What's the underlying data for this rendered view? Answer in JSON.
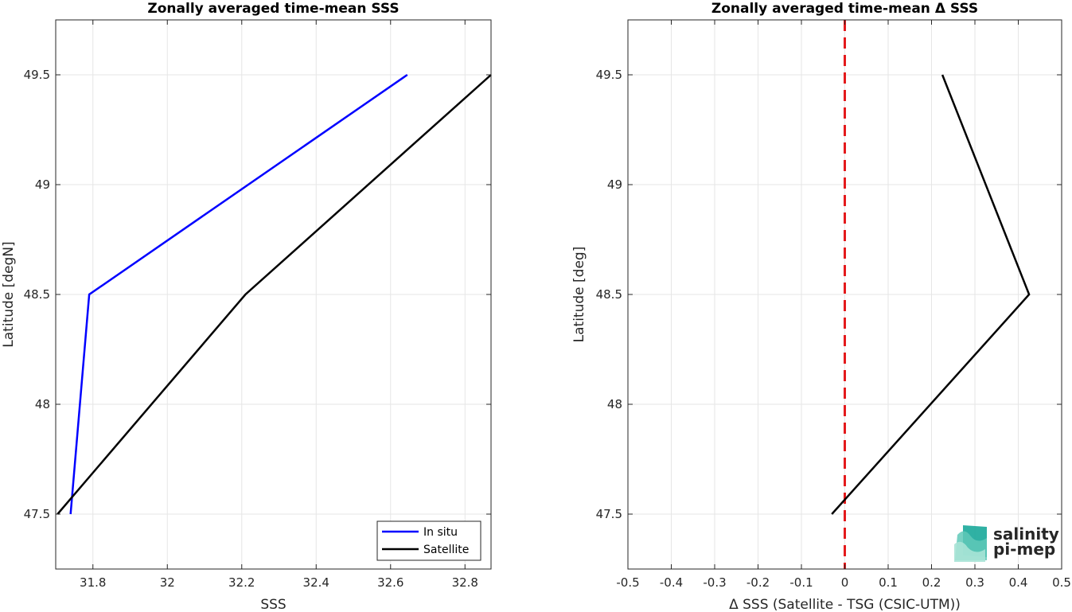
{
  "chart_data": [
    {
      "type": "line",
      "title": "Zonally averaged time-mean SSS",
      "xlabel": "SSS",
      "ylabel": "Latitude [degN]",
      "xlim": [
        31.7,
        32.87
      ],
      "ylim": [
        47.25,
        49.75
      ],
      "xticks": [
        31.8,
        32,
        32.2,
        32.4,
        32.6,
        32.8
      ],
      "xtick_labels": [
        "31.8",
        "32",
        "32.2",
        "32.4",
        "32.6",
        "32.8"
      ],
      "yticks": [
        47.5,
        48,
        48.5,
        49,
        49.5
      ],
      "ytick_labels": [
        "47.5",
        "48",
        "48.5",
        "49",
        "49.5"
      ],
      "grid": true,
      "legend_position": "bottom-right",
      "series": [
        {
          "name": "In situ",
          "color": "#0000ff",
          "x": [
            31.74,
            31.79,
            32.645
          ],
          "y": [
            47.5,
            48.5,
            49.5
          ]
        },
        {
          "name": "Satellite",
          "color": "#000000",
          "x": [
            31.705,
            32.21,
            32.87
          ],
          "y": [
            47.5,
            48.5,
            49.5
          ]
        }
      ]
    },
    {
      "type": "line",
      "title": "Zonally averaged time-mean Δ SSS",
      "xlabel": "Δ SSS (Satellite - TSG (CSIC-UTM))",
      "ylabel": "Latitude [deg]",
      "xlim": [
        -0.5,
        0.5
      ],
      "ylim": [
        47.25,
        49.75
      ],
      "xticks": [
        -0.5,
        -0.4,
        -0.3,
        -0.2,
        -0.1,
        0,
        0.1,
        0.2,
        0.3,
        0.4,
        0.5
      ],
      "xtick_labels": [
        "-0.5",
        "-0.4",
        "-0.3",
        "-0.2",
        "-0.1",
        "0",
        "0.1",
        "0.2",
        "0.3",
        "0.4",
        "0.5"
      ],
      "yticks": [
        47.5,
        48,
        48.5,
        49,
        49.5
      ],
      "ytick_labels": [
        "47.5",
        "48",
        "48.5",
        "49",
        "49.5"
      ],
      "grid": true,
      "reference_line": {
        "x": 0,
        "color": "#e41a1c",
        "style": "dashed"
      },
      "series": [
        {
          "color": "#000000",
          "x": [
            -0.03,
            0.425,
            0.225
          ],
          "y": [
            47.5,
            48.5,
            49.5
          ]
        }
      ]
    }
  ],
  "logo": {
    "line1": "salinity",
    "line2": "pi-mep",
    "color1": "#1aa89a",
    "color2": "#14584f"
  }
}
